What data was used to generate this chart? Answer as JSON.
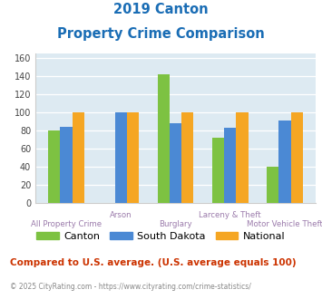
{
  "title_line1": "2019 Canton",
  "title_line2": "Property Crime Comparison",
  "categories": [
    "All Property Crime",
    "Arson",
    "Burglary",
    "Larceny & Theft",
    "Motor Vehicle Theft"
  ],
  "canton_values": [
    80,
    0,
    142,
    72,
    40
  ],
  "sd_values": [
    84,
    100,
    88,
    83,
    91
  ],
  "national_values": [
    100,
    100,
    100,
    100,
    100
  ],
  "canton_color": "#7dc242",
  "sd_color": "#4b89d4",
  "national_color": "#f5a623",
  "legend_labels": [
    "Canton",
    "South Dakota",
    "National"
  ],
  "ylim": [
    0,
    165
  ],
  "yticks": [
    0,
    20,
    40,
    60,
    80,
    100,
    120,
    140,
    160
  ],
  "footnote": "Compared to U.S. average. (U.S. average equals 100)",
  "copyright": "© 2025 CityRating.com - https://www.cityrating.com/crime-statistics/",
  "bg_color": "#ddeaf2",
  "title_color": "#1a6db5",
  "xlabel_color": "#9b7bab",
  "footnote_color": "#cc3300",
  "copyright_color": "#888888"
}
